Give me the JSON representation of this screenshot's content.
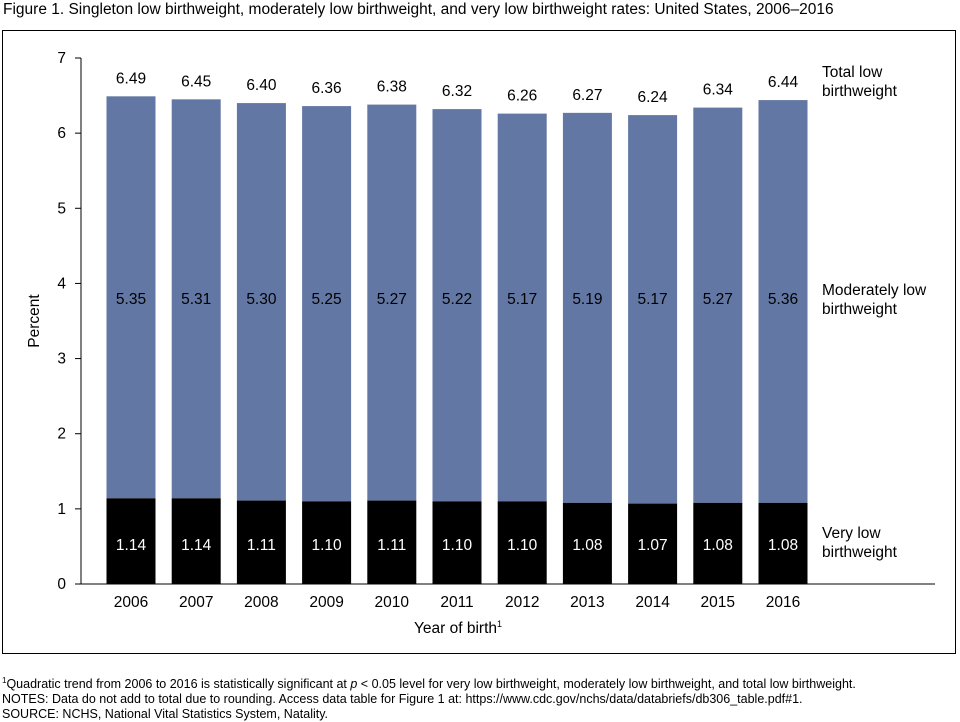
{
  "figure": {
    "title": "Figure 1. Singleton low birthweight, moderately low birthweight, and very low birthweight rates: United States, 2006–2016"
  },
  "chart_data": {
    "type": "bar",
    "stacked": true,
    "categories": [
      "2006",
      "2007",
      "2008",
      "2009",
      "2010",
      "2011",
      "2012",
      "2013",
      "2014",
      "2015",
      "2016"
    ],
    "series": [
      {
        "name": "Very low birthweight",
        "color": "#000000",
        "values": [
          1.14,
          1.14,
          1.11,
          1.1,
          1.11,
          1.1,
          1.1,
          1.08,
          1.07,
          1.08,
          1.08
        ]
      },
      {
        "name": "Moderately low birthweight",
        "color": "#6277a3",
        "values": [
          5.35,
          5.31,
          5.3,
          5.25,
          5.27,
          5.22,
          5.17,
          5.19,
          5.17,
          5.27,
          5.36
        ]
      }
    ],
    "totals": {
      "name": "Total low birthweight",
      "values": [
        6.49,
        6.45,
        6.4,
        6.36,
        6.38,
        6.32,
        6.26,
        6.27,
        6.24,
        6.34,
        6.44
      ]
    },
    "series_labels": {
      "total": [
        "Total low",
        "birthweight"
      ],
      "moderate": [
        "Moderately low",
        "birthweight"
      ],
      "very": [
        "Very low",
        "birthweight"
      ]
    },
    "xlabel": "Year of birth",
    "xlabel_sup": "1",
    "ylabel": "Percent",
    "ylim": [
      0,
      7
    ],
    "yticks": [
      0,
      1,
      2,
      3,
      4,
      5,
      6,
      7
    ],
    "grid": false,
    "legend": "right"
  },
  "notes": {
    "footnote_sup": "1",
    "footnote": "Quadratic trend from 2006 to 2016 is statistically significant at ",
    "footnote_p": "p",
    "footnote_rest": " < 0.05 level for very low birthweight, moderately low birthweight, and total low birthweight.",
    "notes": "NOTES: Data do not add to total due to rounding. Access data table for Figure 1 at: https://www.cdc.gov/nchs/data/databriefs/db306_table.pdf#1.",
    "source": "SOURCE: NCHS, National Vital Statistics System, Natality."
  }
}
